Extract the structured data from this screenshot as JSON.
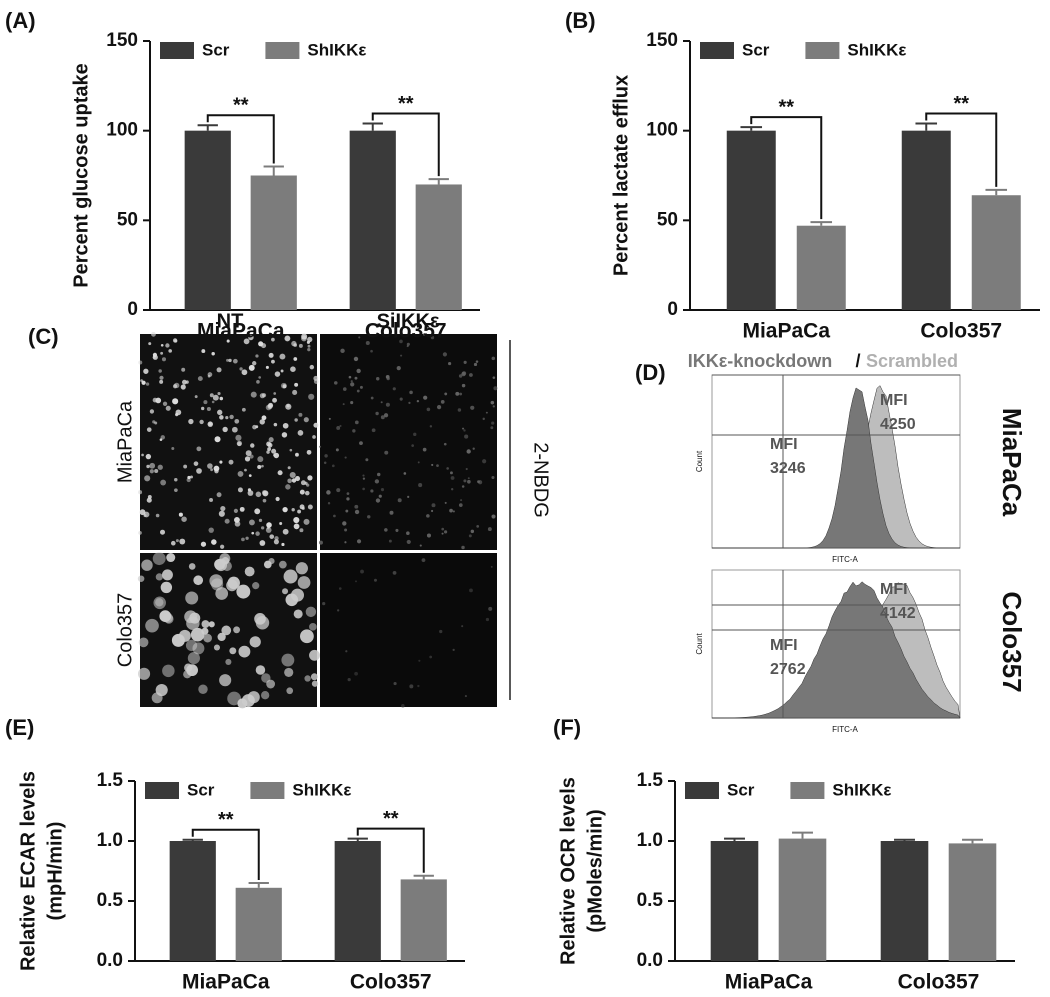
{
  "chart_data": [
    {
      "type": "bar",
      "panel_label": "(A)",
      "y_label": "Percent glucose uptake",
      "legend": "upper left",
      "categories": [
        "MiaPaCa",
        "Colo357"
      ],
      "series": [
        {
          "name": "Scr",
          "color": "#3a3a3a",
          "values": [
            100,
            100
          ],
          "errors": [
            3,
            4
          ]
        },
        {
          "name": "ShIKKε",
          "color": "#7c7c7c",
          "values": [
            75,
            70
          ],
          "errors": [
            5,
            3
          ]
        }
      ],
      "ylim": [
        0,
        150
      ],
      "yticks": [
        0,
        50,
        100,
        150
      ],
      "annotations": [
        "**",
        "**"
      ]
    },
    {
      "type": "bar",
      "panel_label": "(B)",
      "y_label": "Percent lactate efflux",
      "legend": "upper left",
      "categories": [
        "MiaPaCa",
        "Colo357"
      ],
      "series": [
        {
          "name": "Scr",
          "color": "#3a3a3a",
          "values": [
            100,
            100
          ],
          "errors": [
            2,
            4
          ]
        },
        {
          "name": "ShIKKε",
          "color": "#7c7c7c",
          "values": [
            47,
            64
          ],
          "errors": [
            2,
            3
          ]
        }
      ],
      "ylim": [
        0,
        150
      ],
      "yticks": [
        0,
        50,
        100,
        150
      ],
      "annotations": [
        "**",
        "**"
      ]
    },
    {
      "type": "bar",
      "panel_label": "(E)",
      "y_label": [
        "Relative ECAR levels",
        "(mpH/min)"
      ],
      "legend": "upper left",
      "categories": [
        "MiaPaCa",
        "Colo357"
      ],
      "series": [
        {
          "name": "Scr",
          "color": "#3a3a3a",
          "values": [
            1.0,
            1.0
          ],
          "errors": [
            0.01,
            0.02
          ]
        },
        {
          "name": "ShIKKε",
          "color": "#7c7c7c",
          "values": [
            0.61,
            0.68
          ],
          "errors": [
            0.04,
            0.03
          ]
        }
      ],
      "ylim": [
        0,
        1.5
      ],
      "yticks": [
        {
          "value": 0,
          "label": "0.0"
        },
        {
          "value": 0.5,
          "label": "0.5"
        },
        {
          "value": 1,
          "label": "1.0"
        },
        {
          "value": 1.5,
          "label": "1.5"
        }
      ],
      "annotations": [
        "**",
        "**"
      ]
    },
    {
      "type": "bar",
      "panel_label": "(F)",
      "y_label": [
        "Relative OCR levels",
        "(pMoles/min)"
      ],
      "legend": "upper left",
      "categories": [
        "MiaPaCa",
        "Colo357"
      ],
      "series": [
        {
          "name": "Scr",
          "color": "#3a3a3a",
          "values": [
            1.0,
            1.0
          ],
          "errors": [
            0.02,
            0.01
          ]
        },
        {
          "name": "ShIKKε",
          "color": "#7c7c7c",
          "values": [
            1.02,
            0.98
          ],
          "errors": [
            0.05,
            0.03
          ]
        }
      ],
      "ylim": [
        0,
        1.5
      ],
      "yticks": [
        {
          "value": 0,
          "label": "0.0"
        },
        {
          "value": 0.5,
          "label": "0.5"
        },
        {
          "value": 1,
          "label": "1.0"
        },
        {
          "value": 1.5,
          "label": "1.5"
        }
      ]
    }
  ],
  "image_panels": {
    "c": {
      "panel_label": "(C)",
      "columns": [
        "NT",
        "SiIKKε"
      ],
      "rows": [
        "MiaPaCa",
        "Colo357"
      ],
      "side_label": "2-NBDG"
    },
    "d": {
      "panel_label": "(D)",
      "legend": [
        "IKKε-knockdown",
        "/",
        "Scrambled"
      ],
      "rows": [
        "MiaPaCa",
        "Colo357"
      ],
      "axis_x": "FITC-A",
      "axis_y": "Count",
      "mfi": [
        [
          "MFI",
          "4250",
          "MFI",
          "3246"
        ],
        [
          "MFI",
          "4142",
          "MFI",
          "2762"
        ]
      ]
    }
  }
}
